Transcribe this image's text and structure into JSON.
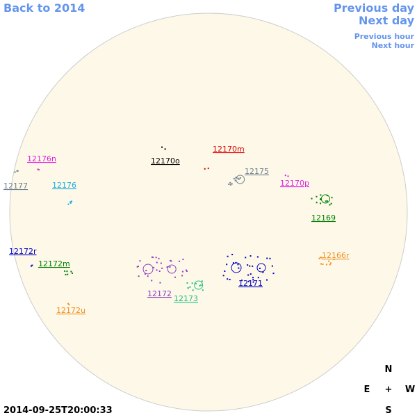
{
  "navigation": {
    "back": "Back to 2014",
    "previous_day": "Previous day",
    "next_day": "Next day",
    "previous_hour": "Previous hour",
    "next_hour": "Next hour"
  },
  "regions": [
    {
      "label": "12176n",
      "color": "#e020e0"
    },
    {
      "label": "12177",
      "color": "#708090"
    },
    {
      "label": "12176",
      "color": "#20b0e0"
    },
    {
      "label": "12170o",
      "color": "#000000"
    },
    {
      "label": "12170m",
      "color": "#e00000"
    },
    {
      "label": "12175",
      "color": "#708090"
    },
    {
      "label": "12170p",
      "color": "#e020e0"
    },
    {
      "label": "12169",
      "color": "#008000"
    },
    {
      "label": "12172r",
      "color": "#0000c0"
    },
    {
      "label": "12172m",
      "color": "#008000"
    },
    {
      "label": "12166r",
      "color": "#f09020"
    },
    {
      "label": "12171",
      "color": "#0000c0"
    },
    {
      "label": "12172",
      "color": "#9040c0"
    },
    {
      "label": "12173",
      "color": "#20c080"
    },
    {
      "label": "12172u",
      "color": "#f09020"
    }
  ],
  "timestamp": "2014-09-25T20:00:33",
  "compass": {
    "north": "N",
    "east": "E",
    "center": "+",
    "west": "W",
    "south": "S"
  }
}
